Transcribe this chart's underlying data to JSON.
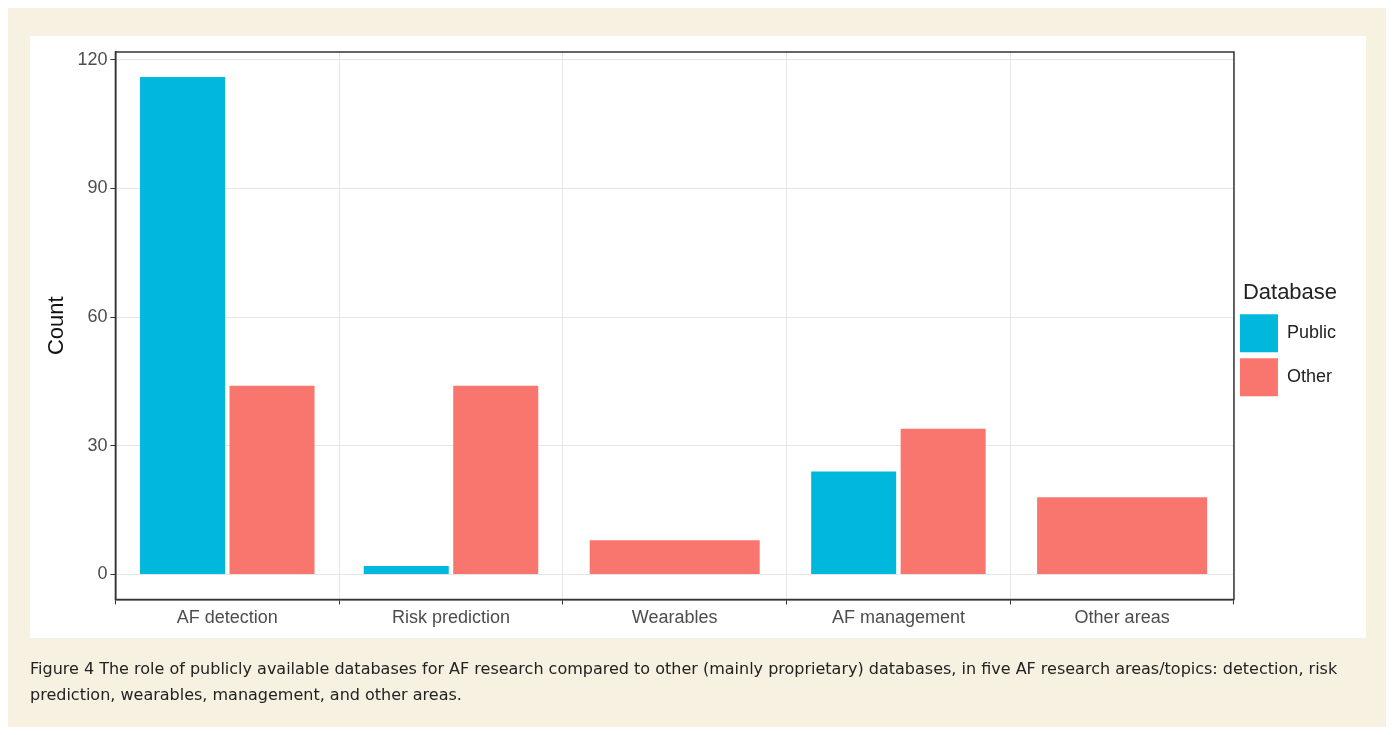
{
  "chart_data": {
    "type": "bar",
    "ylabel": "Count",
    "legend_title": "Database",
    "legend": "right",
    "grid": true,
    "categories": [
      "AF detection",
      "Risk prediction",
      "Wearables",
      "AF management",
      "Other areas"
    ],
    "series": [
      {
        "name": "Public",
        "color": "#00b8dc",
        "values": [
          116,
          2,
          null,
          24,
          null
        ]
      },
      {
        "name": "Other",
        "color": "#f8766d",
        "values": [
          44,
          44,
          8,
          34,
          18
        ]
      }
    ],
    "ylim": [
      -5.8,
      121.8
    ],
    "yticks": [
      0,
      30,
      60,
      90,
      120
    ],
    "annotations": [
      "Figure 4 The role of publicly available databases for AF research compared to other (mainly proprietary) databases, in five AF research areas/topics: detection, risk prediction, wearables, management, and other areas."
    ]
  }
}
